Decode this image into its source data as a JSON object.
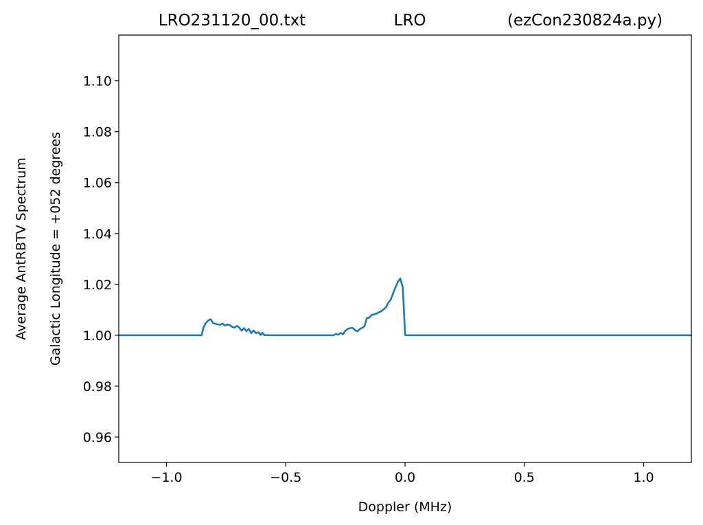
{
  "titles": {
    "left": "LRO231120_00.txt",
    "center": "LRO",
    "right": "(ezCon230824a.py)"
  },
  "chart_data": {
    "type": "line",
    "xlabel": "Doppler (MHz)",
    "ylabel_outer": "Average AntRBTV Spectrum",
    "ylabel_inner": "Galactic Longitude = +052 degrees",
    "xlim": [
      -1.2,
      1.2
    ],
    "ylim": [
      0.95,
      1.118
    ],
    "x_ticks": [
      -1.0,
      -0.5,
      0.0,
      0.5,
      1.0
    ],
    "x_tick_labels": [
      "−1.0",
      "−0.5",
      "0.0",
      "0.5",
      "1.0"
    ],
    "y_ticks": [
      0.96,
      0.98,
      1.0,
      1.02,
      1.04,
      1.06,
      1.08,
      1.1
    ],
    "y_tick_labels": [
      "0.96",
      "0.98",
      "1.00",
      "1.02",
      "1.04",
      "1.06",
      "1.08",
      "1.10"
    ],
    "grid": false,
    "line_color": "#1f77b4",
    "series": [
      {
        "x": [
          -1.2,
          -0.853,
          -0.845,
          -0.835,
          -0.825,
          -0.815,
          -0.805,
          -0.795,
          -0.785,
          -0.775,
          -0.765,
          -0.755,
          -0.745,
          -0.735,
          -0.725,
          -0.715,
          -0.705,
          -0.695,
          -0.685,
          -0.675,
          -0.665,
          -0.655,
          -0.645,
          -0.635,
          -0.625,
          -0.615,
          -0.605,
          -0.598,
          -0.59,
          -0.58,
          -0.57,
          -0.56,
          -0.3,
          -0.29,
          -0.28,
          -0.27,
          -0.26,
          -0.25,
          -0.24,
          -0.23,
          -0.22,
          -0.21,
          -0.2,
          -0.19,
          -0.18,
          -0.17,
          -0.16,
          -0.15,
          -0.14,
          -0.13,
          -0.12,
          -0.11,
          -0.1,
          -0.09,
          -0.08,
          -0.07,
          -0.06,
          -0.05,
          -0.04,
          -0.03,
          -0.02,
          -0.01,
          -0.005,
          0.0,
          0.005,
          1.2
        ],
        "y": [
          1.0,
          1.0,
          1.003,
          1.0048,
          1.0058,
          1.0063,
          1.0048,
          1.0045,
          1.0043,
          1.0041,
          1.0046,
          1.0038,
          1.0042,
          1.004,
          1.0033,
          1.003,
          1.0037,
          1.003,
          1.0018,
          1.0028,
          1.0016,
          1.0025,
          1.0008,
          1.0019,
          1.0008,
          1.0012,
          1.0001,
          1.001,
          1.0,
          1.0001,
          1.0,
          1.0,
          1.0,
          1.0005,
          1.0002,
          1.0009,
          1.0004,
          1.0018,
          1.0025,
          1.0028,
          1.0029,
          1.0021,
          1.0015,
          1.0024,
          1.0029,
          1.0035,
          1.0068,
          1.0069,
          1.008,
          1.0082,
          1.0085,
          1.009,
          1.0094,
          1.0102,
          1.011,
          1.0128,
          1.014,
          1.0165,
          1.0188,
          1.021,
          1.0223,
          1.019,
          1.0105,
          1.0001,
          1.0,
          1.0
        ]
      }
    ]
  }
}
